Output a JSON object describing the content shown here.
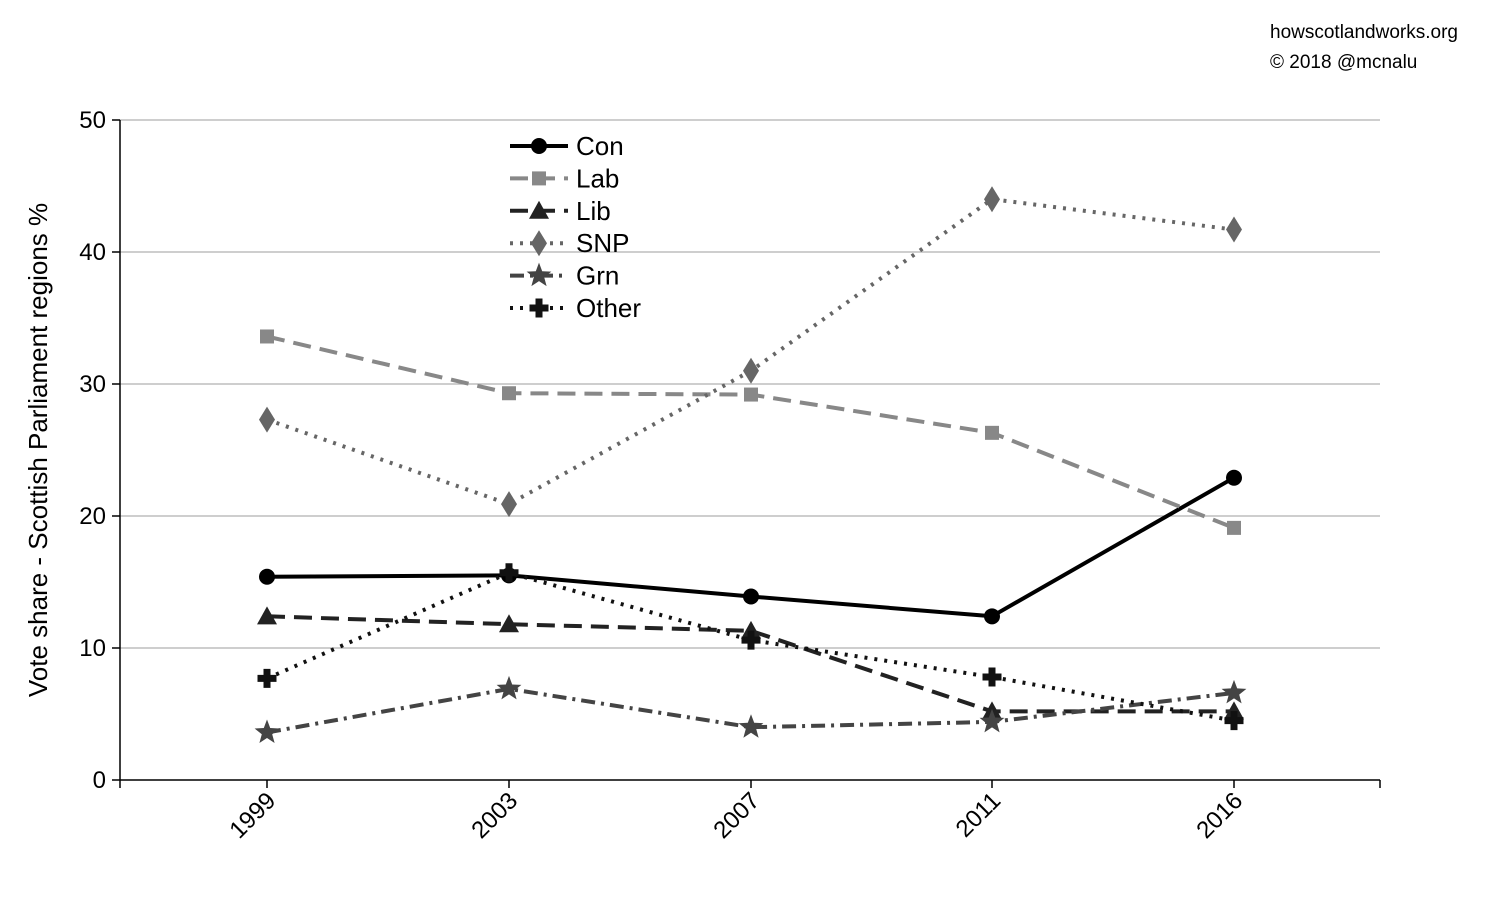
{
  "credits": {
    "site": "howscotlandworks.org",
    "copyright": "© 2018  @mcnalu"
  },
  "chart_data": {
    "type": "line",
    "title": "",
    "xlabel": "",
    "ylabel": "Vote share - Scottish Parliament regions %",
    "x": [
      "1999",
      "2003",
      "2007",
      "2011",
      "2016"
    ],
    "ylim": [
      0,
      50
    ],
    "yticks": [
      "0",
      "10",
      "20",
      "30",
      "40",
      "50"
    ],
    "grid": true,
    "legend_position": "top-center",
    "series": [
      {
        "name": "Con",
        "values": [
          15.4,
          15.5,
          13.9,
          12.4,
          22.9
        ],
        "color": "#000000",
        "marker": "circle",
        "dash": "solid"
      },
      {
        "name": "Lab",
        "values": [
          33.6,
          29.3,
          29.2,
          26.3,
          19.1
        ],
        "color": "#888888",
        "marker": "square",
        "dash": "dashed"
      },
      {
        "name": "Lib",
        "values": [
          12.4,
          11.8,
          11.3,
          5.2,
          5.2
        ],
        "color": "#222222",
        "marker": "triangle",
        "dash": "dashed"
      },
      {
        "name": "SNP",
        "values": [
          27.3,
          20.9,
          31.0,
          44.0,
          41.7
        ],
        "color": "#666666",
        "marker": "diamond",
        "dash": "dotted"
      },
      {
        "name": "Grn",
        "values": [
          3.6,
          6.9,
          4.0,
          4.4,
          6.6
        ],
        "color": "#444444",
        "marker": "star",
        "dash": "dashdot"
      },
      {
        "name": "Other",
        "values": [
          7.7,
          15.7,
          10.6,
          7.8,
          4.5
        ],
        "color": "#111111",
        "marker": "plus",
        "dash": "dotted"
      }
    ]
  }
}
